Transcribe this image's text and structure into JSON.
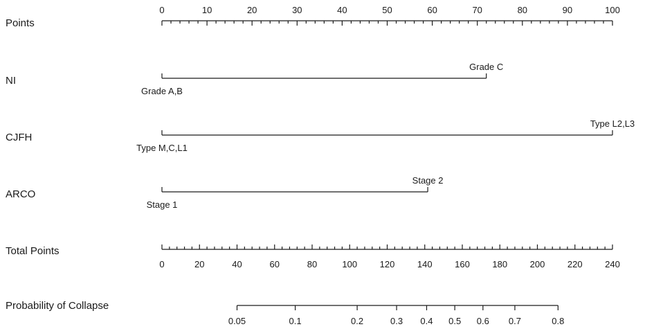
{
  "chart_data": {
    "type": "nomogram",
    "rows": [
      {
        "id": "points",
        "label": "Points",
        "kind": "axis",
        "range": [
          0,
          100
        ],
        "ticks": [
          0,
          10,
          20,
          30,
          40,
          50,
          60,
          70,
          80,
          90,
          100
        ],
        "tick_labels": [
          "0",
          "10",
          "20",
          "30",
          "40",
          "50",
          "60",
          "70",
          "80",
          "90",
          "100"
        ],
        "minor_step": 2,
        "labels_above": true
      },
      {
        "id": "ni",
        "label": "NI",
        "kind": "variable",
        "levels": [
          {
            "label": "Grade A,B",
            "points": 0,
            "label_pos": "below"
          },
          {
            "label": "Grade C",
            "points": 72,
            "label_pos": "above"
          }
        ]
      },
      {
        "id": "cjfh",
        "label": "CJFH",
        "kind": "variable",
        "levels": [
          {
            "label": "Type M,C,L1",
            "points": 0,
            "label_pos": "below"
          },
          {
            "label": "Type L2,L3",
            "points": 100,
            "label_pos": "above"
          }
        ]
      },
      {
        "id": "arco",
        "label": "ARCO",
        "kind": "variable",
        "levels": [
          {
            "label": "Stage 1",
            "points": 0,
            "label_pos": "below"
          },
          {
            "label": "Stage 2",
            "points": 59,
            "label_pos": "above"
          }
        ]
      },
      {
        "id": "total",
        "label": "Total Points",
        "kind": "axis",
        "range": [
          0,
          240
        ],
        "ticks": [
          0,
          20,
          40,
          60,
          80,
          100,
          120,
          140,
          160,
          180,
          200,
          220,
          240
        ],
        "tick_labels": [
          "0",
          "20",
          "40",
          "60",
          "80",
          "100",
          "120",
          "140",
          "160",
          "180",
          "200",
          "220",
          "240"
        ],
        "minor_step": 4,
        "labels_above": false
      },
      {
        "id": "prob",
        "label": "Probability of Collapse",
        "kind": "probability",
        "ticks": [
          {
            "label": "0.05",
            "total_points": 40
          },
          {
            "label": "0.1",
            "total_points": 71
          },
          {
            "label": "0.2",
            "total_points": 104
          },
          {
            "label": "0.3",
            "total_points": 125
          },
          {
            "label": "0.4",
            "total_points": 141
          },
          {
            "label": "0.5",
            "total_points": 156
          },
          {
            "label": "0.6",
            "total_points": 171
          },
          {
            "label": "0.7",
            "total_points": 188
          },
          {
            "label": "0.8",
            "total_points": 211
          }
        ],
        "labels_above": false
      }
    ]
  }
}
